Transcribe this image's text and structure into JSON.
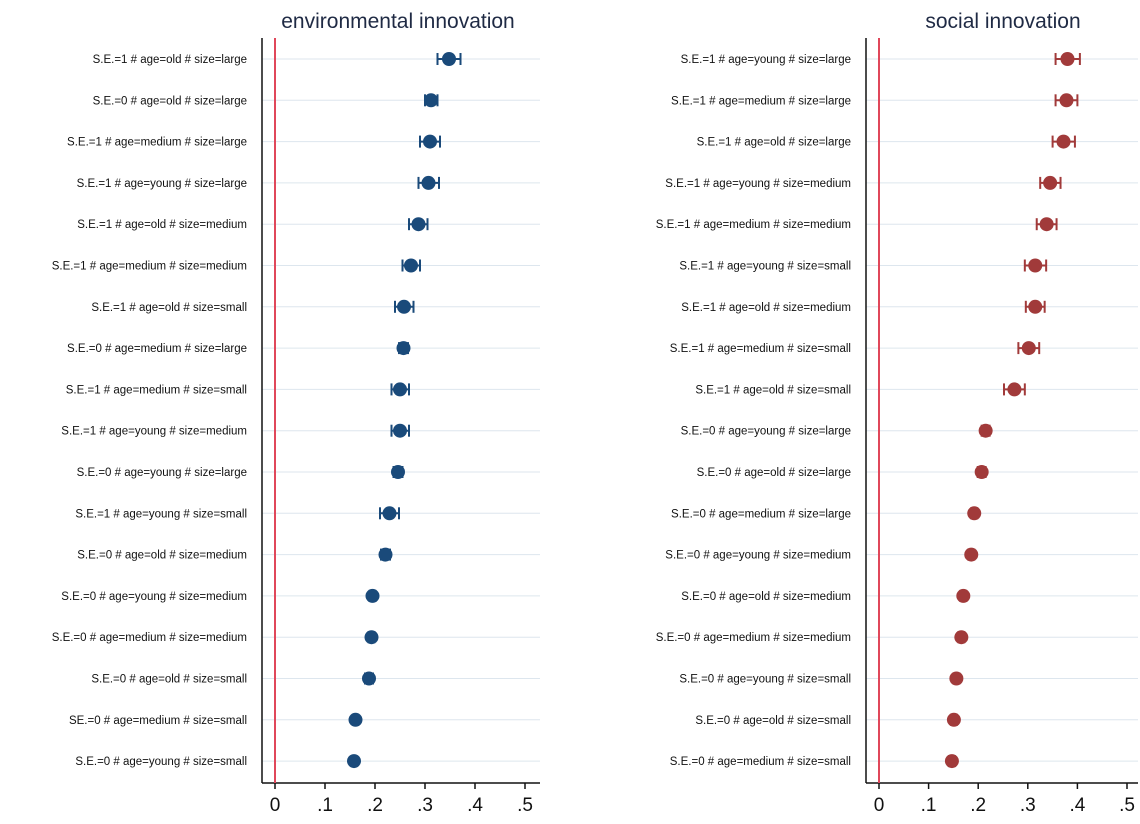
{
  "chart_data": [
    {
      "type": "scatter",
      "title": "environmental innovation",
      "color": "#1a4a7a",
      "ref_line_color": "#e0475a",
      "xlim": [
        0,
        0.5
      ],
      "xticks": [
        {
          "value": 0,
          "label": "0"
        },
        {
          "value": 0.1,
          "label": ".1"
        },
        {
          "value": 0.2,
          "label": ".2"
        },
        {
          "value": 0.3,
          "label": ".3"
        },
        {
          "value": 0.4,
          "label": ".4"
        },
        {
          "value": 0.5,
          "label": ".5"
        }
      ],
      "grid": true,
      "points": [
        {
          "label": "S.E.=1 # age=old # size=large",
          "value": 0.348,
          "ci": [
            0.325,
            0.371
          ]
        },
        {
          "label": "S.E.=0 # age=old # size=large",
          "value": 0.312,
          "ci": [
            0.3,
            0.325
          ]
        },
        {
          "label": "S.E.=1 # age=medium # size=large",
          "value": 0.31,
          "ci": [
            0.29,
            0.33
          ]
        },
        {
          "label": "S.E.=1 # age=young # size=large",
          "value": 0.307,
          "ci": [
            0.287,
            0.328
          ]
        },
        {
          "label": "S.E.=1 # age=old # size=medium",
          "value": 0.287,
          "ci": [
            0.268,
            0.305
          ]
        },
        {
          "label": "S.E.=1 # age=medium # size=medium",
          "value": 0.272,
          "ci": [
            0.255,
            0.29
          ]
        },
        {
          "label": "S.E.=1 # age=old # size=small",
          "value": 0.258,
          "ci": [
            0.24,
            0.277
          ]
        },
        {
          "label": "S.E.=0 # age=medium # size=large",
          "value": 0.257,
          "ci": [
            0.248,
            0.266
          ]
        },
        {
          "label": "S.E.=1 # age=medium # size=small",
          "value": 0.25,
          "ci": [
            0.233,
            0.268
          ]
        },
        {
          "label": "S.E.=1 # age=young # size=medium",
          "value": 0.25,
          "ci": [
            0.233,
            0.268
          ]
        },
        {
          "label": "S.E.=0 # age=young # size=large",
          "value": 0.246,
          "ci": [
            0.237,
            0.255
          ]
        },
        {
          "label": "S.E.=1 # age=young # size=small",
          "value": 0.229,
          "ci": [
            0.21,
            0.248
          ]
        },
        {
          "label": "S.E.=0 # age=old # size=medium",
          "value": 0.221,
          "ci": [
            0.212,
            0.23
          ]
        },
        {
          "label": "S.E.=0 # age=young # size=medium",
          "value": 0.195,
          "ci": [
            0.189,
            0.201
          ]
        },
        {
          "label": "S.E.=0 # age=medium # size=medium",
          "value": 0.193,
          "ci": [
            0.187,
            0.199
          ]
        },
        {
          "label": "S.E.=0 # age=old # size=small",
          "value": 0.188,
          "ci": [
            0.18,
            0.196
          ]
        },
        {
          "label": "SE.=0 # age=medium # size=small",
          "value": 0.161,
          "ci": [
            0.156,
            0.166
          ]
        },
        {
          "label": "S.E.=0 # age=young # size=small",
          "value": 0.158,
          "ci": [
            0.153,
            0.163
          ]
        }
      ]
    },
    {
      "type": "scatter",
      "title": "social innovation",
      "color": "#a13a3a",
      "ref_line_color": "#e0475a",
      "xlim": [
        0,
        0.5
      ],
      "xticks": [
        {
          "value": 0,
          "label": "0"
        },
        {
          "value": 0.1,
          "label": ".1"
        },
        {
          "value": 0.2,
          "label": ".2"
        },
        {
          "value": 0.3,
          "label": ".3"
        },
        {
          "value": 0.4,
          "label": ".4"
        },
        {
          "value": 0.5,
          "label": ".5"
        }
      ],
      "grid": true,
      "points": [
        {
          "label": "S.E.=1 # age=young # size=large",
          "value": 0.38,
          "ci": [
            0.356,
            0.405
          ]
        },
        {
          "label": "S.E.=1 # age=medium # size=large",
          "value": 0.378,
          "ci": [
            0.356,
            0.4
          ]
        },
        {
          "label": "S.E.=1 # age=old # size=large",
          "value": 0.372,
          "ci": [
            0.35,
            0.395
          ]
        },
        {
          "label": "S.E.=1 # age=young # size=medium",
          "value": 0.345,
          "ci": [
            0.325,
            0.366
          ]
        },
        {
          "label": "S.E.=1 # age=medium # size=medium",
          "value": 0.338,
          "ci": [
            0.318,
            0.358
          ]
        },
        {
          "label": "S.E.=1 # age=young # size=small",
          "value": 0.315,
          "ci": [
            0.294,
            0.337
          ]
        },
        {
          "label": "S.E.=1 # age=old # size=medium",
          "value": 0.315,
          "ci": [
            0.296,
            0.334
          ]
        },
        {
          "label": "S.E.=1 # age=medium # size=small",
          "value": 0.302,
          "ci": [
            0.281,
            0.323
          ]
        },
        {
          "label": "S.E.=1 # age=old # size=small",
          "value": 0.273,
          "ci": [
            0.252,
            0.294
          ]
        },
        {
          "label": "S.E.=0 # age=young # size=large",
          "value": 0.215,
          "ci": [
            0.207,
            0.223
          ]
        },
        {
          "label": "S.E.=0 # age=old # size=large",
          "value": 0.207,
          "ci": [
            0.199,
            0.215
          ]
        },
        {
          "label": "S.E.=0 # age=medium # size=large",
          "value": 0.192,
          "ci": [
            0.186,
            0.198
          ]
        },
        {
          "label": "S.E.=0 # age=young # size=medium",
          "value": 0.186,
          "ci": [
            0.18,
            0.192
          ]
        },
        {
          "label": "S.E.=0 # age=old # size=medium",
          "value": 0.17,
          "ci": [
            0.164,
            0.176
          ]
        },
        {
          "label": "S.E.=0 # age=medium # size=medium",
          "value": 0.166,
          "ci": [
            0.16,
            0.172
          ]
        },
        {
          "label": "S.E.=0 # age=young # size=small",
          "value": 0.156,
          "ci": [
            0.15,
            0.162
          ]
        },
        {
          "label": "S.E.=0 # age=old # size=small",
          "value": 0.151,
          "ci": [
            0.145,
            0.157
          ]
        },
        {
          "label": "S.E.=0 # age=medium # size=small",
          "value": 0.147,
          "ci": [
            0.141,
            0.153
          ]
        }
      ]
    }
  ]
}
